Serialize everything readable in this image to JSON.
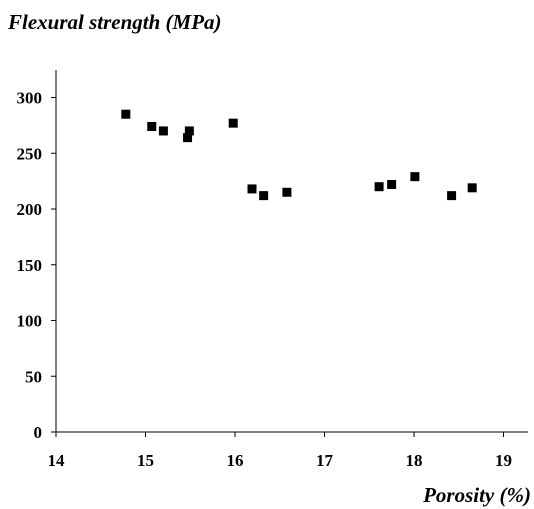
{
  "chart_data": {
    "type": "scatter",
    "title": "",
    "ylabel": "Flexural strength (MPa)",
    "xlabel": "Porosity (%)",
    "xlim": [
      14,
      19.3
    ],
    "ylim": [
      0,
      320
    ],
    "x_ticks": [
      "14",
      "15",
      "16",
      "17",
      "18",
      "19"
    ],
    "y_ticks": [
      "0",
      "50",
      "100",
      "150",
      "200",
      "250",
      "300"
    ],
    "grid": false,
    "marker": "square",
    "marker_color": "#000000",
    "series": [
      {
        "x": [
          14.78,
          15.07,
          15.2,
          15.47,
          15.49,
          15.98,
          16.19,
          16.32,
          16.58,
          17.61,
          17.75,
          18.01,
          18.42,
          18.65
        ],
        "y": [
          285,
          274,
          270,
          264,
          270,
          277,
          218,
          212,
          215,
          220,
          222,
          229,
          212,
          219
        ]
      }
    ]
  }
}
